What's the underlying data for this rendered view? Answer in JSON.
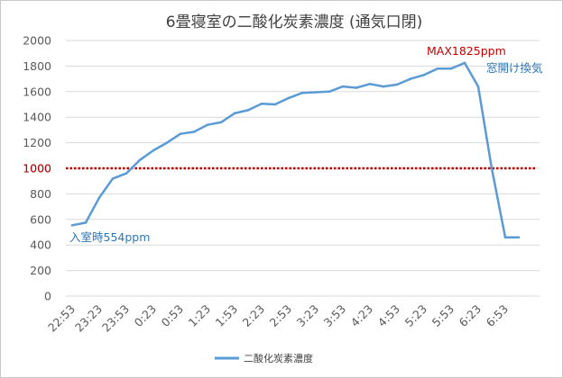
{
  "chart_data": {
    "type": "line",
    "title": "6畳寝室の二酸化炭素濃度 (通気口閉)",
    "xlabel": "",
    "ylabel": "",
    "ylim": [
      0,
      2000
    ],
    "yticks": [
      "0",
      "200",
      "400",
      "600",
      "800",
      "1000",
      "1200",
      "1400",
      "1600",
      "1800",
      "2000"
    ],
    "xtick_labels": [
      "22:53",
      "23:23",
      "23:53",
      "0:23",
      "0:53",
      "1:23",
      "1:53",
      "2:23",
      "2:53",
      "3:23",
      "3:53",
      "4:23",
      "4:53",
      "5:23",
      "5:53",
      "6:23",
      "6:53"
    ],
    "grid": true,
    "legend_position": "bottom",
    "series": [
      {
        "name": "二酸化炭素濃度",
        "color": "#5b9bd5",
        "x": [
          "22:53",
          "23:08",
          "23:23",
          "23:38",
          "23:53",
          "0:08",
          "0:23",
          "0:38",
          "0:53",
          "1:08",
          "1:23",
          "1:38",
          "1:53",
          "2:08",
          "2:23",
          "2:38",
          "2:53",
          "3:08",
          "3:23",
          "3:38",
          "3:53",
          "4:08",
          "4:23",
          "4:38",
          "4:53",
          "5:08",
          "5:23",
          "5:38",
          "5:53",
          "6:08",
          "6:23",
          "6:38",
          "6:53",
          "7:08"
        ],
        "values": [
          554,
          575,
          770,
          920,
          960,
          1065,
          1140,
          1200,
          1270,
          1285,
          1340,
          1360,
          1430,
          1455,
          1505,
          1500,
          1550,
          1590,
          1595,
          1600,
          1640,
          1630,
          1660,
          1640,
          1655,
          1700,
          1730,
          1780,
          1780,
          1825,
          1640,
          1000,
          460,
          460
        ]
      }
    ],
    "reference_line": {
      "value": 1000,
      "color": "#c00000",
      "label": "1000"
    },
    "annotations": {
      "max_label": "MAX1825ppm",
      "vent_label": "窓開け換気",
      "entry_label": "入室時554ppm"
    }
  }
}
